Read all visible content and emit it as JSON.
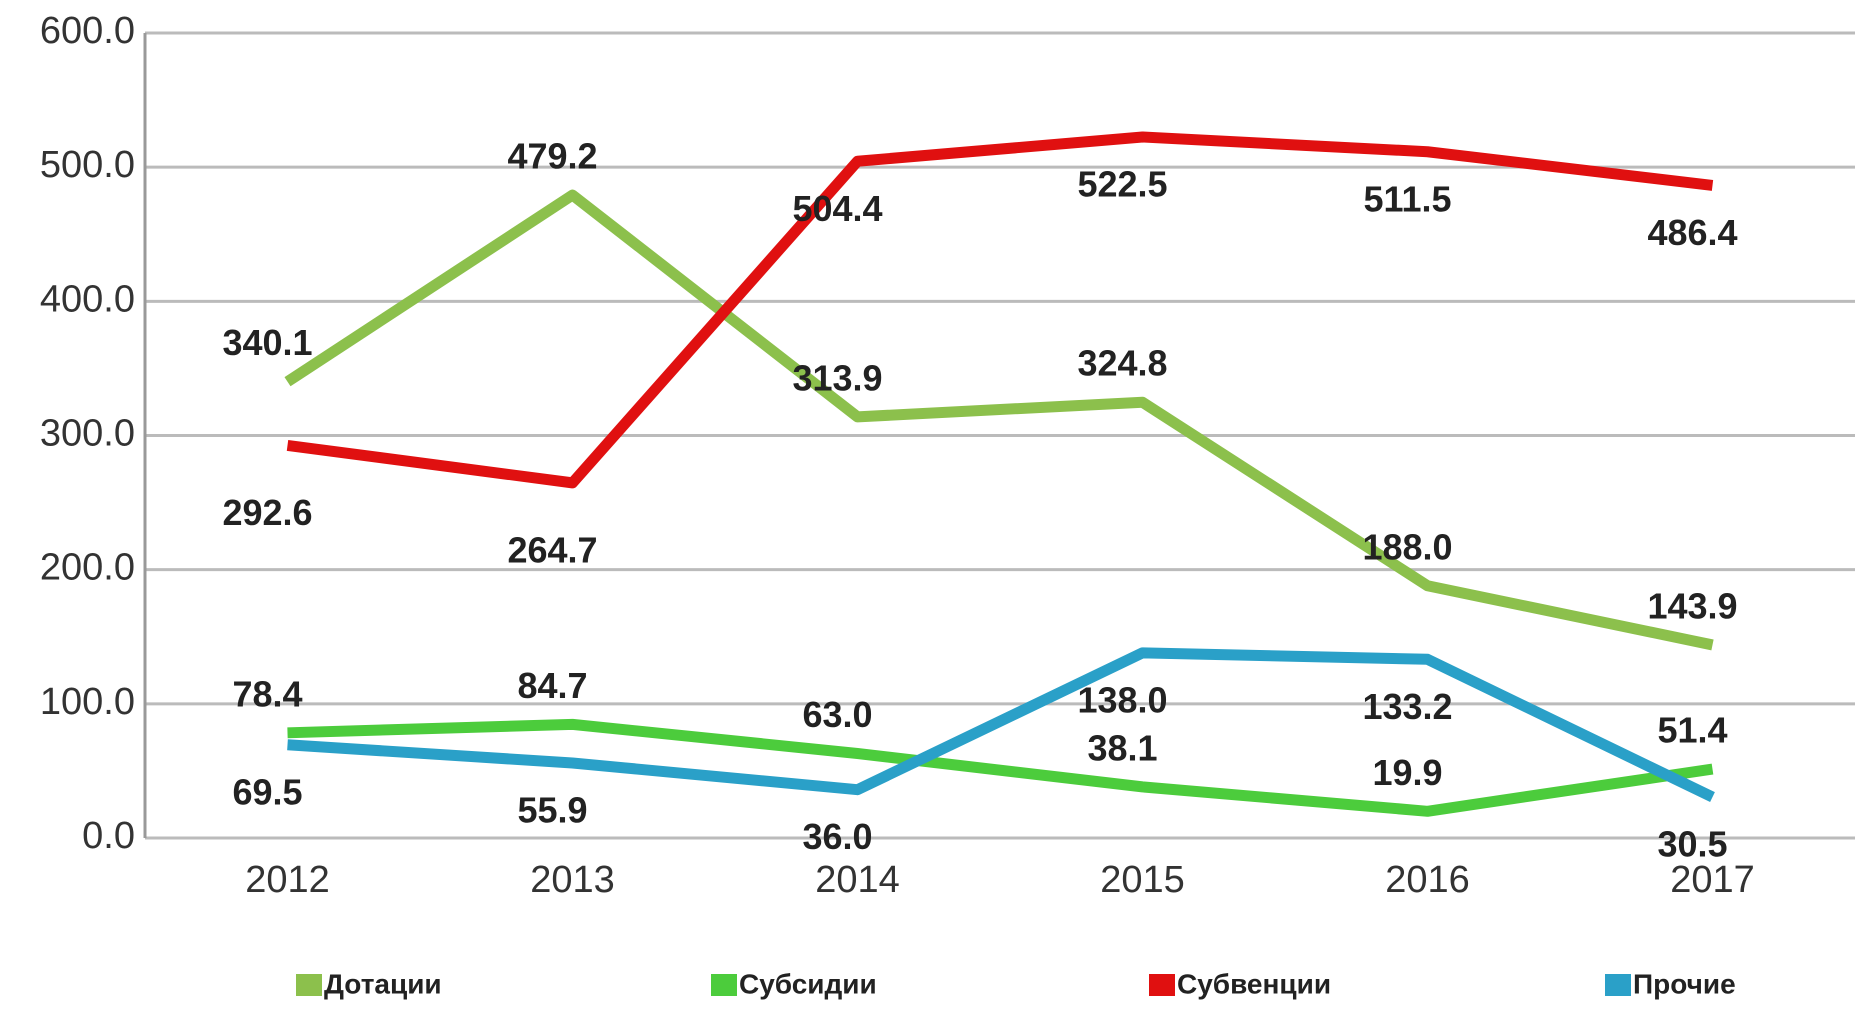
{
  "chart_data": {
    "type": "line",
    "categories": [
      "2012",
      "2013",
      "2014",
      "2015",
      "2016",
      "2017"
    ],
    "series": [
      {
        "name": "Дотации",
        "color": "#8cc04c",
        "values": [
          340.1,
          479.2,
          313.9,
          324.8,
          188.0,
          143.9
        ],
        "value_labels": [
          "340.1",
          "479.2",
          "313.9",
          "324.8",
          "188.0",
          "143.9"
        ]
      },
      {
        "name": "Субсидии",
        "color": "#4ccc3c",
        "values": [
          78.4,
          84.7,
          63.0,
          38.1,
          19.9,
          51.4
        ],
        "value_labels": [
          "78.4",
          "84.7",
          "63.0",
          "38.1",
          "19.9",
          "51.4"
        ]
      },
      {
        "name": "Субвенции",
        "color": "#e01010",
        "values": [
          292.6,
          264.7,
          504.4,
          522.5,
          511.5,
          486.4
        ],
        "value_labels": [
          "292.6",
          "264.7",
          "504.4",
          "522.5",
          "511.5",
          "486.4"
        ]
      },
      {
        "name": "Прочие",
        "color": "#2aa0c8",
        "values": [
          69.5,
          55.9,
          36.0,
          138.0,
          133.2,
          30.5
        ],
        "value_labels": [
          "69.5",
          "55.9",
          "36.0",
          "138.0",
          "133.2",
          "30.5"
        ]
      }
    ],
    "ylim": [
      0,
      600
    ],
    "yticks": [
      {
        "value": 0,
        "label": "0.0"
      },
      {
        "value": 100,
        "label": "100.0"
      },
      {
        "value": 200,
        "label": "200.0"
      },
      {
        "value": 300,
        "label": "300.0"
      },
      {
        "value": 400,
        "label": "400.0"
      },
      {
        "value": 500,
        "label": "500.0"
      },
      {
        "value": 600,
        "label": "600.0"
      }
    ],
    "grid": true,
    "legend": "bottom"
  }
}
